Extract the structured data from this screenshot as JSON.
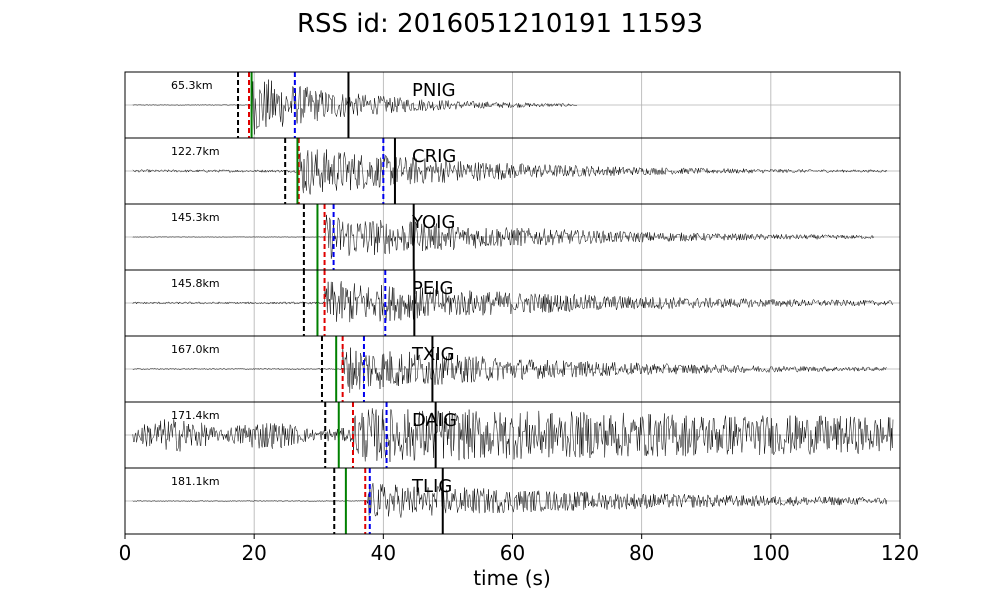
{
  "chart_data": {
    "type": "line",
    "title": "RSS id: 2016051210191 11593",
    "xlabel": "time (s)",
    "xlim": [
      0,
      120
    ],
    "xticks": [
      0,
      20,
      40,
      60,
      80,
      100,
      120
    ],
    "grid": true,
    "marker_colors": {
      "black_dashed": "#000000",
      "red_dashed": "#e00000",
      "green_solid": "#008000",
      "blue_dashed": "#0000ee",
      "black_solid": "#000000"
    },
    "panels": [
      {
        "station": "PNIG",
        "distance": "65.3km",
        "signal_start": 19.5,
        "peak": 1.0,
        "decay": 0.06,
        "noise": 0.03,
        "trace_end": 70,
        "markers": {
          "black_dashed": 17.5,
          "red_dashed": 19.2,
          "green_solid": 19.6,
          "blue_dashed": 26.3,
          "black_solid": 34.6
        }
      },
      {
        "station": "CRIG",
        "distance": "122.7km",
        "signal_start": 26.8,
        "peak": 0.85,
        "decay": 0.035,
        "noise": 0.12,
        "trace_end": 118,
        "markers": {
          "black_dashed": 24.8,
          "red_dashed": 26.9,
          "green_solid": 26.7,
          "blue_dashed": 40.0,
          "black_solid": 41.8
        }
      },
      {
        "station": "YOIG",
        "distance": "145.3km",
        "signal_start": 31.0,
        "peak": 0.75,
        "decay": 0.03,
        "noise": 0.02,
        "trace_end": 116,
        "markers": {
          "black_dashed": 27.7,
          "red_dashed": 30.9,
          "green_solid": 29.8,
          "blue_dashed": 32.3,
          "black_solid": 44.7
        }
      },
      {
        "station": "PEIG",
        "distance": "145.8km",
        "signal_start": 30.9,
        "peak": 0.75,
        "decay": 0.025,
        "noise": 0.1,
        "trace_end": 119,
        "markers": {
          "black_dashed": 27.7,
          "red_dashed": 30.9,
          "green_solid": 29.8,
          "blue_dashed": 40.3,
          "black_solid": 44.8
        }
      },
      {
        "station": "TXIG",
        "distance": "167.0km",
        "signal_start": 33.5,
        "peak": 0.8,
        "decay": 0.03,
        "noise": 0.06,
        "trace_end": 118,
        "markers": {
          "black_dashed": 30.5,
          "red_dashed": 33.7,
          "green_solid": 32.7,
          "blue_dashed": 37.0,
          "black_solid": 47.6
        }
      },
      {
        "station": "DAIG",
        "distance": "171.4km",
        "signal_start": 35.3,
        "peak": 0.9,
        "decay": 0.005,
        "noise": 0.55,
        "trace_end": 119,
        "markers": {
          "black_dashed": 31.0,
          "red_dashed": 35.3,
          "green_solid": 33.1,
          "blue_dashed": 40.5,
          "black_solid": 48.1
        }
      },
      {
        "station": "TLIG",
        "distance": "181.1km",
        "signal_start": 37.5,
        "peak": 0.6,
        "decay": 0.02,
        "noise": 0.04,
        "trace_end": 118,
        "markers": {
          "black_dashed": 32.4,
          "red_dashed": 37.2,
          "green_solid": 34.2,
          "blue_dashed": 37.9,
          "black_solid": 49.2
        }
      }
    ]
  }
}
